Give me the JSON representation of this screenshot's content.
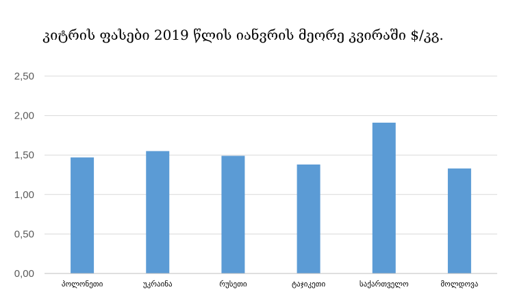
{
  "chart_data": {
    "type": "bar",
    "title": "კიტრის ფასები 2019 წლის იანვრის მეორე კვირაში $/კგ.",
    "categories": [
      "პოლონეთი",
      "უკრაინა",
      "რუსეთი",
      "ტაჯიკეთი",
      "საქართველო",
      "მოლდოვა"
    ],
    "values": [
      1.47,
      1.55,
      1.49,
      1.38,
      1.91,
      1.33
    ],
    "ylim": [
      0,
      2.5
    ],
    "yticks": [
      0,
      0.5,
      1.0,
      1.5,
      2.0,
      2.5
    ],
    "ytick_labels": [
      "0,00",
      "0,50",
      "1,00",
      "1,50",
      "2,00",
      "2,50"
    ],
    "grid": true,
    "legend": "none",
    "xlabel": "",
    "ylabel": "",
    "bar_color": "#5b9bd5"
  }
}
